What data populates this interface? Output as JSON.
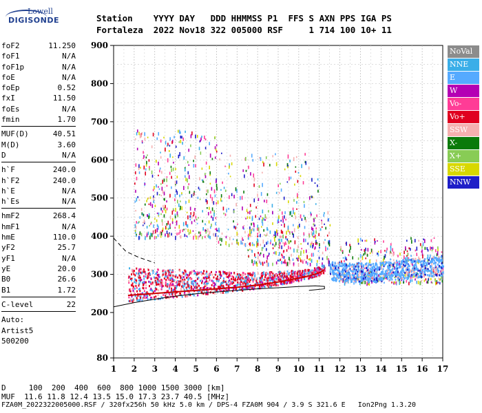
{
  "logo": {
    "line1": "Lowell",
    "line2": "DIGISONDE"
  },
  "header": {
    "row1": "Station    YYYY DAY   DDD HHMMSS P1  FFS S AXN PPS IGA PS",
    "row2": "Fortaleza  2022 Nov18 322 005000 RSF     1 714 100 10+ 11"
  },
  "params": {
    "group1": [
      {
        "k": "foF2",
        "v": "11.250"
      },
      {
        "k": "foF1",
        "v": "N/A"
      },
      {
        "k": "foF1p",
        "v": "N/A"
      },
      {
        "k": "foE",
        "v": "N/A"
      },
      {
        "k": "foEp",
        "v": "0.52"
      },
      {
        "k": "fxI",
        "v": "11.50"
      },
      {
        "k": "foEs",
        "v": "N/A"
      },
      {
        "k": "fmin",
        "v": "1.70"
      }
    ],
    "group2": [
      {
        "k": "MUF(D)",
        "v": "40.51"
      },
      {
        "k": "M(D)",
        "v": "3.60"
      },
      {
        "k": "D",
        "v": "N/A"
      }
    ],
    "group3": [
      {
        "k": "h`F",
        "v": "240.0"
      },
      {
        "k": "h`F2",
        "v": "240.0"
      },
      {
        "k": "h`E",
        "v": "N/A"
      },
      {
        "k": "h`Es",
        "v": "N/A"
      }
    ],
    "group4": [
      {
        "k": "hmF2",
        "v": "268.4"
      },
      {
        "k": "hmF1",
        "v": "N/A"
      },
      {
        "k": "hmE",
        "v": "110.0"
      },
      {
        "k": "yF2",
        "v": "25.7"
      },
      {
        "k": "yF1",
        "v": "N/A"
      },
      {
        "k": "yE",
        "v": "20.0"
      },
      {
        "k": "B0",
        "v": "26.6"
      },
      {
        "k": "B1",
        "v": "1.72"
      }
    ],
    "group5": [
      {
        "k": "C-level",
        "v": "22"
      }
    ],
    "notes": [
      "Auto:",
      "Artist5",
      "500200"
    ]
  },
  "chart_data": {
    "type": "scatter",
    "title": "",
    "xlabel": "",
    "ylabel": "",
    "xlim": [
      1,
      17
    ],
    "ylim": [
      80,
      900
    ],
    "x_ticks": [
      1,
      2,
      3,
      4,
      5,
      6,
      7,
      8,
      9,
      10,
      11,
      12,
      13,
      14,
      15,
      16,
      17
    ],
    "y_ticks": [
      80,
      200,
      300,
      400,
      500,
      600,
      700,
      800,
      900
    ],
    "grid": true,
    "legend_placement": "right",
    "legend": [
      {
        "label": "NoVal",
        "color": "#8c8c8c"
      },
      {
        "label": "NNE",
        "color": "#3aaee8"
      },
      {
        "label": "E",
        "color": "#55aaff"
      },
      {
        "label": "W",
        "color": "#b400b4"
      },
      {
        "label": "Vo-",
        "color": "#ff3c96"
      },
      {
        "label": "Vo+",
        "color": "#e00020"
      },
      {
        "label": "SSW",
        "color": "#f5b0b0"
      },
      {
        "label": "X-",
        "color": "#0a7a0a"
      },
      {
        "label": "X+",
        "color": "#88cc55"
      },
      {
        "label": "SSE",
        "color": "#d8d800"
      },
      {
        "label": "NNW",
        "color": "#1e1ec8"
      }
    ],
    "trace_main": [
      [
        1.7,
        245
      ],
      [
        2,
        246
      ],
      [
        3,
        250
      ],
      [
        4,
        254
      ],
      [
        5,
        258
      ],
      [
        6,
        262
      ],
      [
        7,
        266
      ],
      [
        8,
        272
      ],
      [
        9,
        280
      ],
      [
        10,
        290
      ],
      [
        10.5,
        296
      ],
      [
        11,
        304
      ],
      [
        11.25,
        312
      ]
    ],
    "trace_spread": [
      [
        11.5,
        310
      ],
      [
        12.5,
        308
      ],
      [
        13.5,
        306
      ],
      [
        14.5,
        312
      ],
      [
        15.5,
        318
      ],
      [
        16.5,
        322
      ],
      [
        17,
        325
      ]
    ],
    "profile": [
      [
        1,
        215
      ],
      [
        2,
        226
      ],
      [
        3,
        235
      ],
      [
        4,
        243
      ],
      [
        5,
        249
      ],
      [
        6,
        254
      ],
      [
        7,
        258
      ],
      [
        8,
        262
      ],
      [
        9,
        265
      ],
      [
        10,
        268
      ],
      [
        10.8,
        270
      ],
      [
        11.25,
        268.4
      ],
      [
        11.25,
        262
      ],
      [
        10.5,
        258
      ]
    ],
    "profile_dashed": [
      [
        1,
        395
      ],
      [
        1.6,
        360
      ],
      [
        2.2,
        345
      ],
      [
        3,
        330
      ]
    ],
    "scatter_blobs": [
      {
        "x": [
          2,
          6
        ],
        "y": [
          400,
          680
        ],
        "n": 420
      },
      {
        "x": [
          6,
          11
        ],
        "y": [
          380,
          620
        ],
        "n": 260
      },
      {
        "x": [
          12,
          17
        ],
        "y": [
          280,
          400
        ],
        "n": 380
      },
      {
        "x": [
          7.5,
          11.5
        ],
        "y": [
          330,
          470
        ],
        "n": 240
      }
    ]
  },
  "footer": {
    "line1": "D     100  200  400  600  800 1000 1500 3000 [km]",
    "line2": "MUF  11.6 11.8 12.4 13.5 15.0 17.3 23.7 40.5 [MHz]",
    "line3": "FZA0M_2022322005000.RSF / 320fx256h 50 kHz 5.0 km / DPS-4 FZA0M 904 / 3.9 S 321.6 E   Ion2Png 1.3.20"
  }
}
